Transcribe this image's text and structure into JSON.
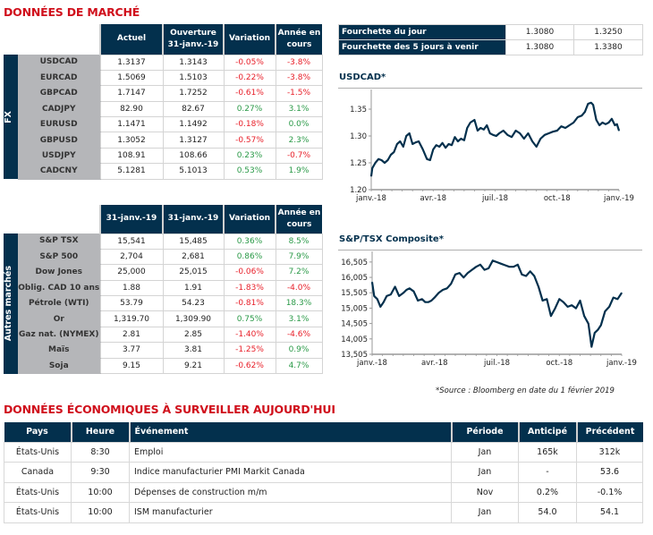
{
  "market_title": "DONNÉES DE MARCHÉ",
  "fx_table": {
    "side_label": "FX",
    "headers": [
      "Actuel",
      "Ouverture 31-janv.-19",
      "Variation",
      "Année en cours"
    ],
    "header_lines": [
      [
        "Actuel"
      ],
      [
        "Ouverture",
        "31-janv.-19"
      ],
      [
        "Variation"
      ],
      [
        "Année en",
        "cours"
      ]
    ],
    "rows": [
      {
        "label": "USDCAD",
        "current": "1.3137",
        "open": "1.3143",
        "change": "-0.05%",
        "change_sign": "neg",
        "ytd": "-3.8%",
        "ytd_sign": "neg"
      },
      {
        "label": "EURCAD",
        "current": "1.5069",
        "open": "1.5103",
        "change": "-0.22%",
        "change_sign": "neg",
        "ytd": "-3.8%",
        "ytd_sign": "neg"
      },
      {
        "label": "GBPCAD",
        "current": "1.7147",
        "open": "1.7252",
        "change": "-0.61%",
        "change_sign": "neg",
        "ytd": "-1.5%",
        "ytd_sign": "neg"
      },
      {
        "label": "CADJPY",
        "current": "82.90",
        "open": "82.67",
        "change": "0.27%",
        "change_sign": "pos",
        "ytd": "3.1%",
        "ytd_sign": "pos"
      },
      {
        "label": "EURUSD",
        "current": "1.1471",
        "open": "1.1492",
        "change": "-0.18%",
        "change_sign": "neg",
        "ytd": "0.0%",
        "ytd_sign": "pos"
      },
      {
        "label": "GBPUSD",
        "current": "1.3052",
        "open": "1.3127",
        "change": "-0.57%",
        "change_sign": "neg",
        "ytd": "2.3%",
        "ytd_sign": "pos"
      },
      {
        "label": "USDJPY",
        "current": "108.91",
        "open": "108.66",
        "change": "0.23%",
        "change_sign": "pos",
        "ytd": "-0.7%",
        "ytd_sign": "neg"
      },
      {
        "label": "CADCNY",
        "current": "5.1281",
        "open": "5.1013",
        "change": "0.53%",
        "change_sign": "pos",
        "ytd": "1.9%",
        "ytd_sign": "pos"
      }
    ]
  },
  "other_table": {
    "side_label": "Autres marchés",
    "header_lines": [
      [
        "31-janv.-19"
      ],
      [
        "31-janv.-19"
      ],
      [
        "Variation"
      ],
      [
        "Année en",
        "cours"
      ]
    ],
    "rows": [
      {
        "label": "S&P TSX",
        "current": "15,541",
        "open": "15,485",
        "change": "0.36%",
        "change_sign": "pos",
        "ytd": "8.5%",
        "ytd_sign": "pos"
      },
      {
        "label": "S&P 500",
        "current": "2,704",
        "open": "2,681",
        "change": "0.86%",
        "change_sign": "pos",
        "ytd": "7.9%",
        "ytd_sign": "pos"
      },
      {
        "label": "Dow Jones",
        "current": "25,000",
        "open": "25,015",
        "change": "-0.06%",
        "change_sign": "neg",
        "ytd": "7.2%",
        "ytd_sign": "pos"
      },
      {
        "label": "Oblig. CAD 10 ans",
        "current": "1.88",
        "open": "1.91",
        "change": "-1.83%",
        "change_sign": "neg",
        "ytd": "-4.0%",
        "ytd_sign": "neg"
      },
      {
        "label": "Pétrole (WTI)",
        "current": "53.79",
        "open": "54.23",
        "change": "-0.81%",
        "change_sign": "neg",
        "ytd": "18.3%",
        "ytd_sign": "pos"
      },
      {
        "label": "Or",
        "current": "1,319.70",
        "open": "1,309.90",
        "change": "0.75%",
        "change_sign": "pos",
        "ytd": "3.1%",
        "ytd_sign": "pos"
      },
      {
        "label": "Gaz nat. (NYMEX)",
        "current": "2.81",
        "open": "2.85",
        "change": "-1.40%",
        "change_sign": "neg",
        "ytd": "-4.6%",
        "ytd_sign": "neg"
      },
      {
        "label": "Maïs",
        "current": "3.77",
        "open": "3.81",
        "change": "-1.25%",
        "change_sign": "neg",
        "ytd": "0.9%",
        "ytd_sign": "pos"
      },
      {
        "label": "Soja",
        "current": "9.15",
        "open": "9.21",
        "change": "-0.62%",
        "change_sign": "neg",
        "ytd": "4.7%",
        "ytd_sign": "pos"
      }
    ]
  },
  "ranges": [
    {
      "label": "Fourchette du jour",
      "low": "1.3080",
      "high": "1.3250"
    },
    {
      "label": "Fourchette des 5 jours à venir",
      "low": "1.3080",
      "high": "1.3380"
    }
  ],
  "source_note": "*Source : Bloomberg en date du  1 février 2019",
  "econ_title": "DONNÉES ÉCONOMIQUES À SURVEILLER AUJOURD'HUI",
  "econ_table": {
    "headers": {
      "country": "Pays",
      "time": "Heure",
      "event": "Événement",
      "period": "Période",
      "forecast": "Anticipé",
      "previous": "Précédent"
    },
    "rows": [
      {
        "country": "États-Unis",
        "time": "8:30",
        "event": "Emploi",
        "period": "Jan",
        "forecast": "165k",
        "previous": "312k"
      },
      {
        "country": "Canada",
        "time": "9:30",
        "event": "Indice manufacturier PMI Markit Canada",
        "period": "Jan",
        "forecast": "-",
        "previous": "53.6"
      },
      {
        "country": "États-Unis",
        "time": "10:00",
        "event": "Dépenses de construction m/m",
        "period": "Nov",
        "forecast": "0.2%",
        "previous": "-0.1%"
      },
      {
        "country": "États-Unis",
        "time": "10:00",
        "event": "ISM manufacturier",
        "period": "Jan",
        "forecast": "54.0",
        "previous": "54.1"
      }
    ]
  },
  "colors": {
    "navy": "#03304d",
    "red_title": "#d0101c",
    "negative": "#e8202a",
    "positive": "#2b9a48",
    "label_gray": "#b5b6b9"
  },
  "chart_data": [
    {
      "type": "line",
      "title": "USDCAD*",
      "xlabel": "",
      "ylabel": "",
      "x_ticks": [
        "janv.-18",
        "avr.-18",
        "juil.-18",
        "oct.-18",
        "janv.-19"
      ],
      "y_ticks": [
        "1.20",
        "1.25",
        "1.30",
        "1.35"
      ],
      "ylim": [
        1.2,
        1.38
      ],
      "grid": false,
      "series": [
        {
          "name": "USDCAD",
          "x_months": [
            0,
            0.05,
            0.2,
            0.35,
            0.5,
            0.65,
            0.8,
            0.95,
            1.1,
            1.25,
            1.4,
            1.55,
            1.7,
            1.85,
            2.0,
            2.15,
            2.3,
            2.5,
            2.7,
            2.85,
            3.0,
            3.15,
            3.3,
            3.45,
            3.6,
            3.75,
            3.9,
            4.05,
            4.2,
            4.35,
            4.5,
            4.65,
            4.8,
            5.0,
            5.15,
            5.3,
            5.45,
            5.6,
            5.75,
            5.9,
            6.05,
            6.2,
            6.4,
            6.6,
            6.8,
            7.0,
            7.2,
            7.4,
            7.6,
            7.8,
            8.0,
            8.2,
            8.4,
            8.6,
            8.8,
            9.0,
            9.2,
            9.4,
            9.6,
            9.8,
            10.0,
            10.2,
            10.35,
            10.5,
            10.65,
            10.75,
            10.9,
            11.05,
            11.2,
            11.35,
            11.5,
            11.65,
            11.8,
            11.9,
            12.0
          ],
          "values": [
            1.225,
            1.24,
            1.25,
            1.257,
            1.255,
            1.25,
            1.255,
            1.265,
            1.27,
            1.285,
            1.29,
            1.28,
            1.3,
            1.305,
            1.285,
            1.288,
            1.29,
            1.275,
            1.257,
            1.255,
            1.275,
            1.283,
            1.28,
            1.287,
            1.278,
            1.285,
            1.283,
            1.298,
            1.29,
            1.295,
            1.292,
            1.315,
            1.325,
            1.33,
            1.31,
            1.315,
            1.312,
            1.32,
            1.305,
            1.302,
            1.3,
            1.305,
            1.31,
            1.302,
            1.298,
            1.31,
            1.305,
            1.295,
            1.305,
            1.29,
            1.28,
            1.295,
            1.302,
            1.305,
            1.308,
            1.31,
            1.318,
            1.315,
            1.32,
            1.325,
            1.335,
            1.338,
            1.345,
            1.36,
            1.362,
            1.358,
            1.33,
            1.32,
            1.325,
            1.322,
            1.325,
            1.332,
            1.32,
            1.322,
            1.31
          ]
        }
      ]
    },
    {
      "type": "line",
      "title": "S&P/TSX Composite*",
      "xlabel": "",
      "ylabel": "",
      "x_ticks": [
        "janv.-18",
        "avr.-18",
        "juil.-18",
        "oct.-18",
        "janv.-19"
      ],
      "y_ticks": [
        "13,505",
        "14,005",
        "14,505",
        "15,005",
        "15,505",
        "16,005",
        "16,505"
      ],
      "ylim": [
        13505,
        16850
      ],
      "grid": false,
      "series": [
        {
          "name": "S&P/TSX Composite",
          "x_months": [
            0,
            0.1,
            0.25,
            0.4,
            0.55,
            0.7,
            0.9,
            1.1,
            1.3,
            1.5,
            1.65,
            1.8,
            2.0,
            2.2,
            2.4,
            2.55,
            2.7,
            2.85,
            3.0,
            3.2,
            3.4,
            3.6,
            3.8,
            4.0,
            4.2,
            4.4,
            4.6,
            4.8,
            5.0,
            5.2,
            5.4,
            5.6,
            5.8,
            6.0,
            6.2,
            6.4,
            6.6,
            6.8,
            7.0,
            7.2,
            7.4,
            7.6,
            7.8,
            8.0,
            8.2,
            8.4,
            8.6,
            8.8,
            9.0,
            9.2,
            9.4,
            9.6,
            9.8,
            10.0,
            10.2,
            10.4,
            10.55,
            10.7,
            10.85,
            11.0,
            11.2,
            11.4,
            11.6,
            11.8,
            12.0
          ],
          "values": [
            15850,
            15400,
            15300,
            15050,
            15200,
            15400,
            15450,
            15700,
            15400,
            15500,
            15600,
            15650,
            15550,
            15250,
            15300,
            15200,
            15200,
            15250,
            15350,
            15500,
            15600,
            15650,
            15800,
            16100,
            16150,
            16000,
            16150,
            16250,
            16350,
            16420,
            16250,
            16300,
            16550,
            16500,
            16450,
            16400,
            16350,
            16350,
            16420,
            16100,
            16050,
            16200,
            16050,
            15700,
            15250,
            15300,
            14750,
            15000,
            15300,
            15200,
            15050,
            15100,
            15000,
            15250,
            14750,
            14500,
            13750,
            14200,
            14300,
            14450,
            14900,
            15050,
            15350,
            15300,
            15500
          ]
        }
      ]
    }
  ]
}
